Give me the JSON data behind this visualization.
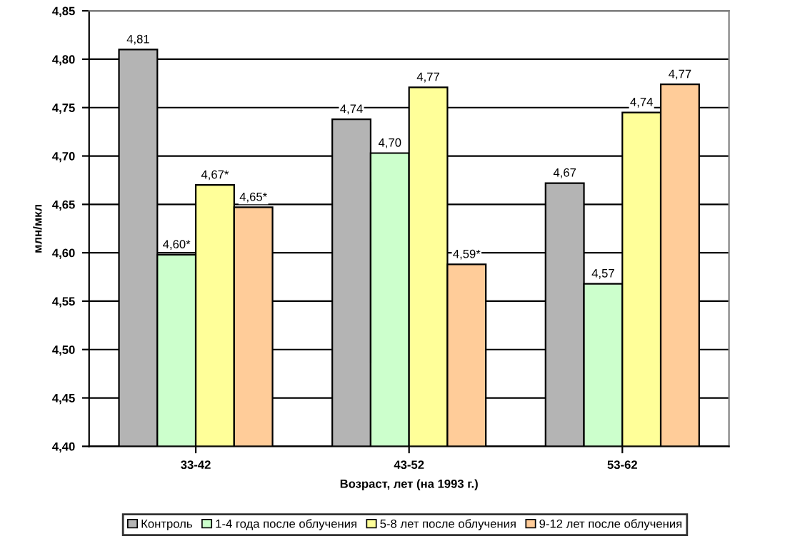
{
  "chart_data": {
    "type": "bar",
    "xlabel": "Возраст, лет (на 1993 г.)",
    "ylabel": "млн/мкл",
    "categories": [
      "33-42",
      "43-52",
      "53-62"
    ],
    "series": [
      {
        "name": "Контроль",
        "color": "#b4b4b4",
        "values": [
          4.81,
          4.738,
          4.672
        ],
        "value_labels": [
          "4,81",
          "4,74",
          "4,67"
        ]
      },
      {
        "name": "1-4 года после облучения",
        "color": "#ccffcc",
        "values": [
          4.598,
          4.703,
          4.568
        ],
        "value_labels": [
          "4,60*",
          "4,70",
          "4,57"
        ]
      },
      {
        "name": "5-8 лет после облучения",
        "color": "#ffff99",
        "values": [
          4.67,
          4.771,
          4.745
        ],
        "value_labels": [
          "4,67*",
          "4,77",
          "4,74"
        ]
      },
      {
        "name": "9-12 лет после облучения",
        "color": "#ffcc99",
        "values": [
          4.647,
          4.588,
          4.774
        ],
        "value_labels": [
          "4,65*",
          "4,59*",
          "4,77"
        ]
      }
    ],
    "ylim": [
      4.4,
      4.85
    ],
    "yticks": [
      {
        "value": 4.4,
        "label": "4,40"
      },
      {
        "value": 4.45,
        "label": "4,45"
      },
      {
        "value": 4.5,
        "label": "4,50"
      },
      {
        "value": 4.55,
        "label": "4,55"
      },
      {
        "value": 4.6,
        "label": "4,60"
      },
      {
        "value": 4.65,
        "label": "4,65"
      },
      {
        "value": 4.7,
        "label": "4,70"
      },
      {
        "value": 4.75,
        "label": "4,75"
      },
      {
        "value": 4.8,
        "label": "4,80"
      },
      {
        "value": 4.85,
        "label": "4,85"
      }
    ],
    "grid": "y",
    "legend": "bottom"
  }
}
